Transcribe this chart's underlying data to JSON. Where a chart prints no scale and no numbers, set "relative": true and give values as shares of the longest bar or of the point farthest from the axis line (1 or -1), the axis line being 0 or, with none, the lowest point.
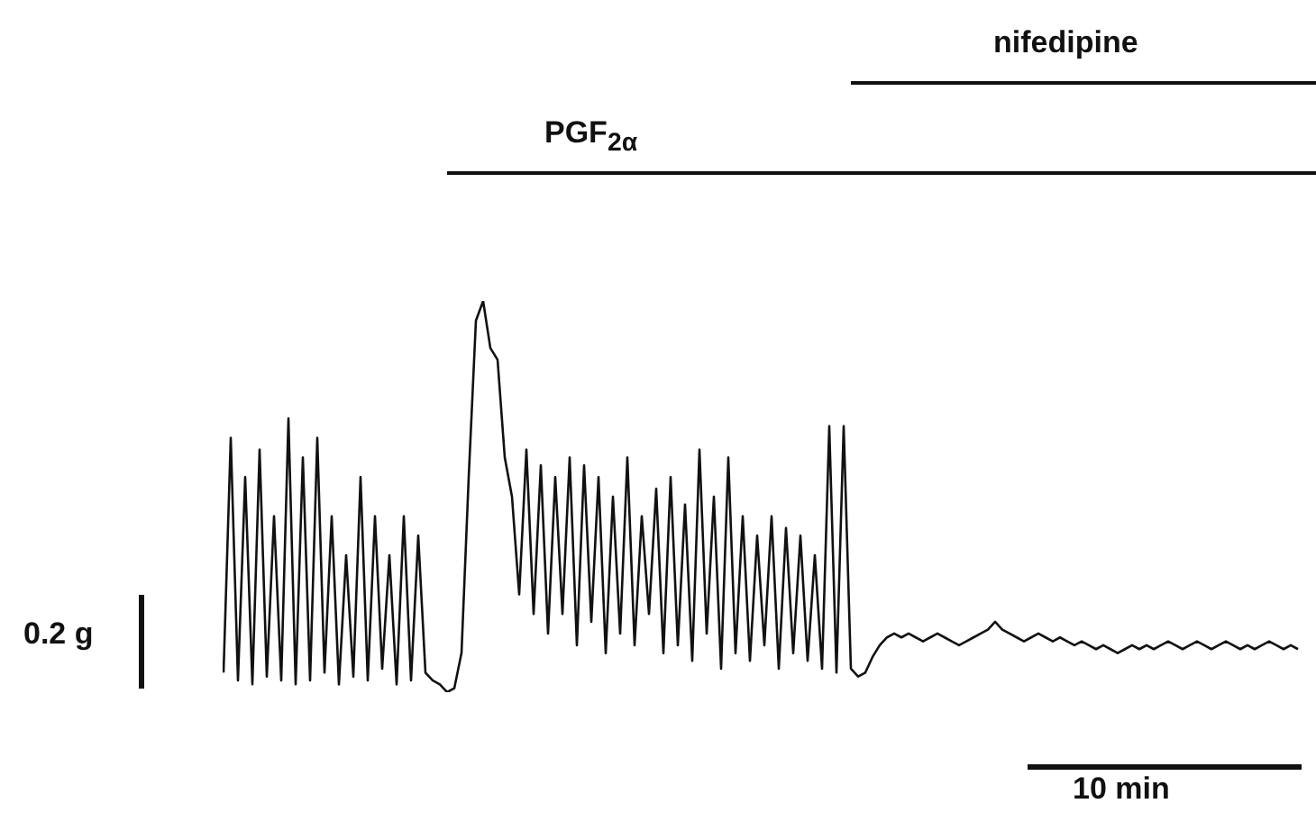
{
  "chart_data": {
    "type": "line",
    "relative": true,
    "color": "#111111",
    "marker": "none",
    "categories": [
      null,
      null,
      null,
      null,
      null,
      null,
      null,
      null,
      null,
      null,
      null,
      null,
      null,
      null,
      null,
      null,
      null,
      null,
      null,
      null,
      null,
      null,
      null,
      null,
      null,
      null,
      null,
      null,
      null,
      null,
      null,
      null,
      null,
      null,
      null,
      null,
      null,
      null,
      null,
      null,
      null,
      null,
      null,
      null,
      null,
      null,
      null,
      null,
      null,
      null,
      null,
      null,
      null,
      null,
      null,
      null,
      null,
      null,
      null,
      null,
      null,
      null,
      null,
      null,
      null,
      null,
      null,
      null,
      null,
      null,
      null,
      null,
      null,
      null,
      null,
      null,
      null,
      null,
      null,
      null,
      null,
      null,
      null,
      null,
      null,
      null,
      null,
      null,
      null,
      null,
      null,
      null,
      null,
      null,
      null,
      null,
      null,
      null,
      null,
      null,
      null,
      null,
      null,
      null,
      null,
      null,
      null,
      null,
      null,
      null,
      null,
      null,
      null,
      null,
      null,
      null,
      null,
      null,
      null,
      null,
      null,
      null,
      null,
      null,
      null,
      null,
      null,
      null,
      null,
      null,
      null,
      null,
      null,
      null,
      null,
      null,
      null,
      null,
      null,
      null,
      null,
      null,
      null,
      null,
      null,
      null,
      null,
      null,
      null,
      null
    ],
    "values": [
      0.05,
      0.65,
      0.03,
      0.55,
      0.02,
      0.62,
      0.04,
      0.45,
      0.03,
      0.7,
      0.02,
      0.6,
      0.03,
      0.65,
      0.05,
      0.45,
      0.02,
      0.35,
      0.04,
      0.55,
      0.03,
      0.45,
      0.06,
      0.35,
      0.02,
      0.45,
      0.03,
      0.4,
      0.05,
      0.03,
      0.02,
      0.0,
      0.01,
      0.1,
      0.55,
      0.95,
      1.0,
      0.88,
      0.85,
      0.6,
      0.5,
      0.25,
      0.62,
      0.2,
      0.58,
      0.15,
      0.55,
      0.2,
      0.6,
      0.12,
      0.58,
      0.18,
      0.55,
      0.1,
      0.5,
      0.15,
      0.6,
      0.12,
      0.45,
      0.2,
      0.52,
      0.1,
      0.55,
      0.12,
      0.48,
      0.08,
      0.62,
      0.15,
      0.5,
      0.06,
      0.6,
      0.1,
      0.45,
      0.08,
      0.4,
      0.12,
      0.45,
      0.06,
      0.42,
      0.1,
      0.4,
      0.08,
      0.35,
      0.06,
      0.68,
      0.05,
      0.68,
      0.06,
      0.04,
      0.05,
      0.09,
      0.12,
      0.14,
      0.15,
      0.14,
      0.15,
      0.14,
      0.13,
      0.14,
      0.15,
      0.14,
      0.13,
      0.12,
      0.13,
      0.14,
      0.15,
      0.16,
      0.18,
      0.16,
      0.15,
      0.14,
      0.13,
      0.14,
      0.15,
      0.14,
      0.13,
      0.14,
      0.13,
      0.12,
      0.13,
      0.12,
      0.11,
      0.12,
      0.11,
      0.1,
      0.11,
      0.12,
      0.11,
      0.12,
      0.11,
      0.12,
      0.13,
      0.12,
      0.11,
      0.12,
      0.13,
      0.12,
      0.11,
      0.12,
      0.13,
      0.12,
      0.11,
      0.12,
      0.11,
      0.12,
      0.13,
      0.12,
      0.11,
      0.12,
      0.11
    ],
    "annotations": [
      "PGF$_{2α}$",
      "nifedipine",
      "0.2 g",
      "10 min"
    ]
  }
}
